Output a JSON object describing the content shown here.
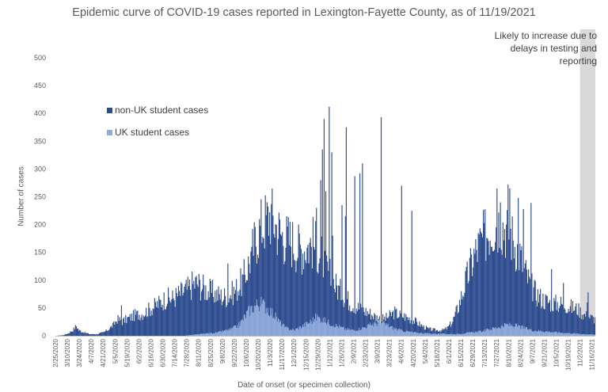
{
  "chart_data": {
    "type": "bar",
    "stacked": true,
    "title": "Epidemic curve of COVID-19 cases reported in Lexington-Fayette County, as of 11/19/2021",
    "xlabel": "Date of onset (or specimen collection)",
    "ylabel": "Number of cases",
    "ylim": [
      0,
      500
    ],
    "yticks": [
      0,
      50,
      100,
      150,
      200,
      250,
      300,
      350,
      400,
      450,
      500
    ],
    "x_start_date": "2/25/2020",
    "x_end_date": "11/19/2021",
    "grid": false,
    "legend_position": "left, inside plot",
    "xtick_labels": [
      "2/25/2020",
      "3/10/2020",
      "3/24/2020",
      "4/7/2020",
      "4/21/2020",
      "5/5/2020",
      "5/19/2020",
      "6/2/2020",
      "6/16/2020",
      "6/30/2020",
      "7/14/2020",
      "7/28/2020",
      "8/11/2020",
      "8/25/2020",
      "9/8/2020",
      "9/22/2020",
      "10/6/2020",
      "10/20/2020",
      "11/3/2020",
      "11/17/2020",
      "12/1/2020",
      "12/15/2020",
      "12/29/2020",
      "1/12/2021",
      "1/26/2021",
      "2/9/2021",
      "2/23/2021",
      "3/9/2021",
      "3/23/2021",
      "4/6/2021",
      "4/20/2021",
      "5/4/2021",
      "5/18/2021",
      "6/1/2021",
      "6/15/2021",
      "6/29/2021",
      "7/13/2021",
      "7/27/2021",
      "8/10/2021",
      "8/24/2021",
      "9/7/2021",
      "9/21/2021",
      "10/5/2021",
      "10/19/2021",
      "11/2/2021",
      "11/16/2021"
    ],
    "series": [
      {
        "name": "non-UK student cases",
        "color": "#2e4d8f",
        "anchors": [
          [
            0,
            0
          ],
          [
            8,
            1
          ],
          [
            14,
            4
          ],
          [
            20,
            10
          ],
          [
            24,
            18
          ],
          [
            27,
            10
          ],
          [
            33,
            6
          ],
          [
            40,
            3
          ],
          [
            48,
            3
          ],
          [
            56,
            6
          ],
          [
            62,
            12
          ],
          [
            68,
            20
          ],
          [
            72,
            30
          ],
          [
            78,
            26
          ],
          [
            86,
            32
          ],
          [
            94,
            38
          ],
          [
            102,
            40
          ],
          [
            110,
            48
          ],
          [
            118,
            55
          ],
          [
            124,
            62
          ],
          [
            130,
            68
          ],
          [
            136,
            66
          ],
          [
            142,
            72
          ],
          [
            150,
            80
          ],
          [
            156,
            85
          ],
          [
            160,
            92
          ],
          [
            166,
            95
          ],
          [
            172,
            88
          ],
          [
            178,
            82
          ],
          [
            184,
            78
          ],
          [
            190,
            74
          ],
          [
            196,
            70
          ],
          [
            202,
            72
          ],
          [
            210,
            80
          ],
          [
            218,
            96
          ],
          [
            224,
            118
          ],
          [
            230,
            150
          ],
          [
            236,
            180
          ],
          [
            242,
            200
          ],
          [
            248,
            210
          ],
          [
            252,
            220
          ],
          [
            256,
            205
          ],
          [
            262,
            190
          ],
          [
            266,
            180
          ],
          [
            272,
            175
          ],
          [
            278,
            170
          ],
          [
            284,
            160
          ],
          [
            290,
            156
          ],
          [
            296,
            162
          ],
          [
            302,
            168
          ],
          [
            306,
            160
          ],
          [
            310,
            150
          ],
          [
            316,
            130
          ],
          [
            322,
            108
          ],
          [
            328,
            92
          ],
          [
            334,
            80
          ],
          [
            340,
            70
          ],
          [
            346,
            60
          ],
          [
            352,
            54
          ],
          [
            358,
            48
          ],
          [
            364,
            44
          ],
          [
            370,
            40
          ],
          [
            376,
            34
          ],
          [
            382,
            30
          ],
          [
            388,
            32
          ],
          [
            394,
            38
          ],
          [
            398,
            42
          ],
          [
            402,
            38
          ],
          [
            408,
            36
          ],
          [
            414,
            32
          ],
          [
            420,
            28
          ],
          [
            426,
            22
          ],
          [
            432,
            16
          ],
          [
            438,
            12
          ],
          [
            446,
            10
          ],
          [
            454,
            10
          ],
          [
            460,
            14
          ],
          [
            466,
            26
          ],
          [
            472,
            50
          ],
          [
            478,
            80
          ],
          [
            484,
            110
          ],
          [
            490,
            140
          ],
          [
            496,
            160
          ],
          [
            502,
            175
          ],
          [
            508,
            190
          ],
          [
            514,
            200
          ],
          [
            520,
            205
          ],
          [
            526,
            198
          ],
          [
            532,
            190
          ],
          [
            538,
            170
          ],
          [
            544,
            150
          ],
          [
            550,
            120
          ],
          [
            556,
            96
          ],
          [
            562,
            80
          ],
          [
            568,
            70
          ],
          [
            574,
            64
          ],
          [
            580,
            60
          ],
          [
            586,
            58
          ],
          [
            592,
            58
          ],
          [
            598,
            56
          ],
          [
            604,
            52
          ],
          [
            613,
            48
          ],
          [
            620,
            38
          ],
          [
            633,
            30
          ]
        ],
        "spikes": [
          [
            77,
            55
          ],
          [
            202,
            130
          ],
          [
            220,
            110
          ],
          [
            224,
            100
          ],
          [
            230,
            160
          ],
          [
            244,
            175
          ],
          [
            256,
            183
          ],
          [
            283,
            135
          ],
          [
            306,
            230
          ],
          [
            311,
            280
          ],
          [
            313,
            335
          ],
          [
            315,
            390
          ],
          [
            317,
            260
          ],
          [
            321,
            412
          ],
          [
            324,
            330
          ],
          [
            325,
            180
          ],
          [
            336,
            235
          ],
          [
            340,
            215
          ],
          [
            341,
            375
          ],
          [
            351,
            287
          ],
          [
            357,
            292
          ],
          [
            360,
            310
          ],
          [
            382,
            393
          ],
          [
            406,
            270
          ],
          [
            418,
            225
          ],
          [
            518,
            265
          ],
          [
            522,
            240
          ],
          [
            531,
            272
          ],
          [
            533,
            265
          ],
          [
            543,
            248
          ],
          [
            549,
            228
          ],
          [
            558,
            239
          ],
          [
            582,
            120
          ],
          [
            596,
            95
          ],
          [
            624,
            60
          ],
          [
            625,
            78
          ]
        ]
      },
      {
        "name": "UK student cases",
        "color": "#8eaadb",
        "anchors": [
          [
            0,
            0
          ],
          [
            150,
            0
          ],
          [
            170,
            3
          ],
          [
            190,
            6
          ],
          [
            206,
            12
          ],
          [
            214,
            18
          ],
          [
            220,
            30
          ],
          [
            226,
            44
          ],
          [
            232,
            52
          ],
          [
            238,
            58
          ],
          [
            244,
            56
          ],
          [
            250,
            48
          ],
          [
            256,
            38
          ],
          [
            262,
            26
          ],
          [
            270,
            14
          ],
          [
            280,
            10
          ],
          [
            290,
            18
          ],
          [
            300,
            26
          ],
          [
            306,
            34
          ],
          [
            312,
            30
          ],
          [
            320,
            24
          ],
          [
            330,
            18
          ],
          [
            340,
            12
          ],
          [
            350,
            10
          ],
          [
            360,
            14
          ],
          [
            370,
            20
          ],
          [
            380,
            24
          ],
          [
            388,
            20
          ],
          [
            396,
            14
          ],
          [
            404,
            10
          ],
          [
            420,
            6
          ],
          [
            440,
            4
          ],
          [
            470,
            3
          ],
          [
            500,
            8
          ],
          [
            510,
            12
          ],
          [
            520,
            16
          ],
          [
            530,
            20
          ],
          [
            540,
            18
          ],
          [
            550,
            14
          ],
          [
            560,
            10
          ],
          [
            575,
            8
          ],
          [
            590,
            6
          ],
          [
            610,
            4
          ],
          [
            633,
            2
          ]
        ]
      }
    ]
  },
  "shaded_note": "Likely to increase due to delays in testing and reporting",
  "colors": {
    "shade": "#d9d9d9",
    "axis": "#595959"
  }
}
